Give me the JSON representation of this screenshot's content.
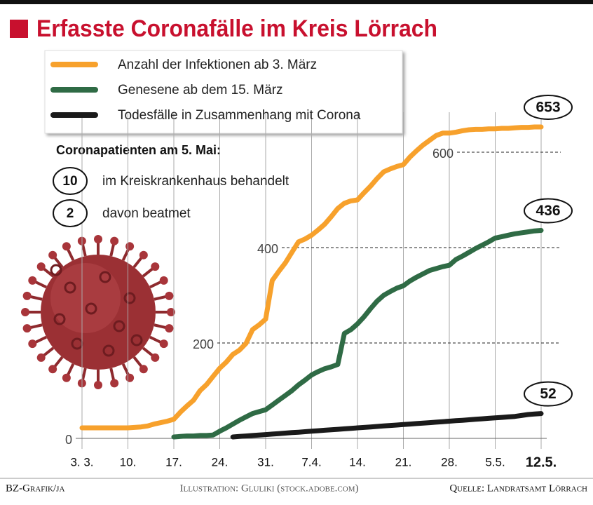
{
  "chart_data": {
    "type": "line",
    "title": "Erfasste Coronafälle im Kreis Lörrach",
    "categories": [
      "3. 3.",
      null,
      null,
      null,
      null,
      null,
      null,
      "10.",
      null,
      null,
      null,
      null,
      null,
      null,
      "17.",
      null,
      null,
      null,
      null,
      null,
      null,
      "24.",
      null,
      null,
      null,
      null,
      null,
      null,
      "31.",
      null,
      null,
      null,
      null,
      null,
      null,
      "7.4.",
      null,
      null,
      null,
      null,
      null,
      null,
      "14.",
      null,
      null,
      null,
      null,
      null,
      null,
      "21.",
      null,
      null,
      null,
      null,
      null,
      null,
      "28.",
      null,
      null,
      null,
      null,
      null,
      null,
      "5.5.",
      null,
      null,
      null,
      null,
      null,
      null,
      "12.5."
    ],
    "series": [
      {
        "name": "Anzahl der Infektionen ab 3. März",
        "color": "#f7a12c",
        "values": [
          22,
          22,
          22,
          22,
          22,
          22,
          22,
          22,
          23,
          24,
          26,
          30,
          33,
          36,
          40,
          55,
          68,
          80,
          100,
          113,
          130,
          147,
          160,
          176,
          185,
          199,
          228,
          238,
          250,
          331,
          350,
          368,
          390,
          412,
          418,
          426,
          437,
          449,
          465,
          482,
          493,
          498,
          500,
          515,
          529,
          545,
          559,
          565,
          570,
          574,
          590,
          603,
          615,
          625,
          635,
          640,
          640,
          642,
          645,
          647,
          648,
          648,
          649,
          649,
          650,
          650,
          651,
          652,
          652,
          653,
          653
        ]
      },
      {
        "name": "Genesene ab dem 15. März",
        "color": "#2f6b45",
        "values": [
          null,
          null,
          null,
          null,
          null,
          null,
          null,
          null,
          null,
          null,
          null,
          null,
          null,
          null,
          3,
          4,
          5,
          5,
          6,
          6,
          7,
          15,
          22,
          30,
          38,
          45,
          52,
          56,
          60,
          70,
          80,
          90,
          100,
          112,
          122,
          133,
          140,
          146,
          150,
          155,
          220,
          228,
          240,
          255,
          272,
          288,
          300,
          308,
          315,
          320,
          330,
          338,
          345,
          352,
          356,
          360,
          363,
          375,
          382,
          390,
          398,
          405,
          412,
          420,
          423,
          426,
          429,
          431,
          433,
          435,
          436
        ]
      },
      {
        "name": "Todesfälle in Zusammenhang mit Corona",
        "color": "#1a1a1a",
        "values": [
          null,
          null,
          null,
          null,
          null,
          null,
          null,
          null,
          null,
          null,
          null,
          null,
          null,
          null,
          null,
          null,
          null,
          null,
          null,
          null,
          null,
          null,
          null,
          3,
          4,
          5,
          6,
          7,
          8,
          9,
          10,
          11,
          12,
          13,
          14,
          15,
          16,
          17,
          18,
          19,
          20,
          21,
          22,
          23,
          24,
          25,
          26,
          27,
          28,
          29,
          30,
          31,
          32,
          33,
          34,
          35,
          36,
          37,
          38,
          39,
          40,
          41,
          42,
          43,
          44,
          45,
          46,
          48,
          50,
          51,
          52
        ]
      }
    ],
    "ylim": [
      0,
      700
    ],
    "yticks": [
      0,
      200,
      400,
      600
    ],
    "grid": true,
    "info": {
      "heading": "Coronapatienten am 5. Mai:",
      "items": [
        {
          "value": 10,
          "label": "im Kreiskrankenhaus behandelt"
        },
        {
          "value": 2,
          "label": "davon beatmet"
        }
      ]
    },
    "credits": [
      "BZ-Grafik/ja",
      "Illustration: Gluliki (stock.adobe.com)",
      "Quelle: Landratsamt Lörrach"
    ]
  }
}
